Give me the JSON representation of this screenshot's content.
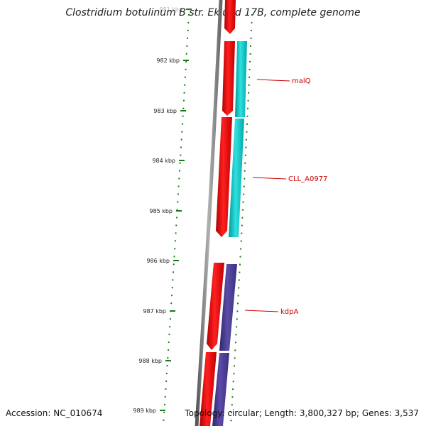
{
  "title": "Clostridium botulinum B str. Eklund 17B, complete genome",
  "accession": "Accession: NC_010674",
  "topology": "Topology: circular; Length: 3,800,327 bp; Genes: 3,537",
  "ruler": {
    "unit": "kbp",
    "ticks": [
      {
        "label": "981 kbp",
        "faded": true
      },
      {
        "label": "982 kbp"
      },
      {
        "label": "983 kbp"
      },
      {
        "label": "984 kbp"
      },
      {
        "label": "985 kbp"
      },
      {
        "label": "986 kbp"
      },
      {
        "label": "987 kbp"
      },
      {
        "label": "988 kbp"
      },
      {
        "label": "989 kbp"
      }
    ]
  },
  "genes": [
    {
      "name": "malQ",
      "strand": "forward",
      "color": "#00c0c0"
    },
    {
      "name": "CLL_A0977",
      "strand": "reverse",
      "color": "#ff0000"
    },
    {
      "name": "kdpA",
      "strand": "forward",
      "color": "#4b3d8f"
    }
  ],
  "colors": {
    "backbone": "#888888",
    "tick": "#1a7a1a",
    "label": "#cc0000"
  }
}
